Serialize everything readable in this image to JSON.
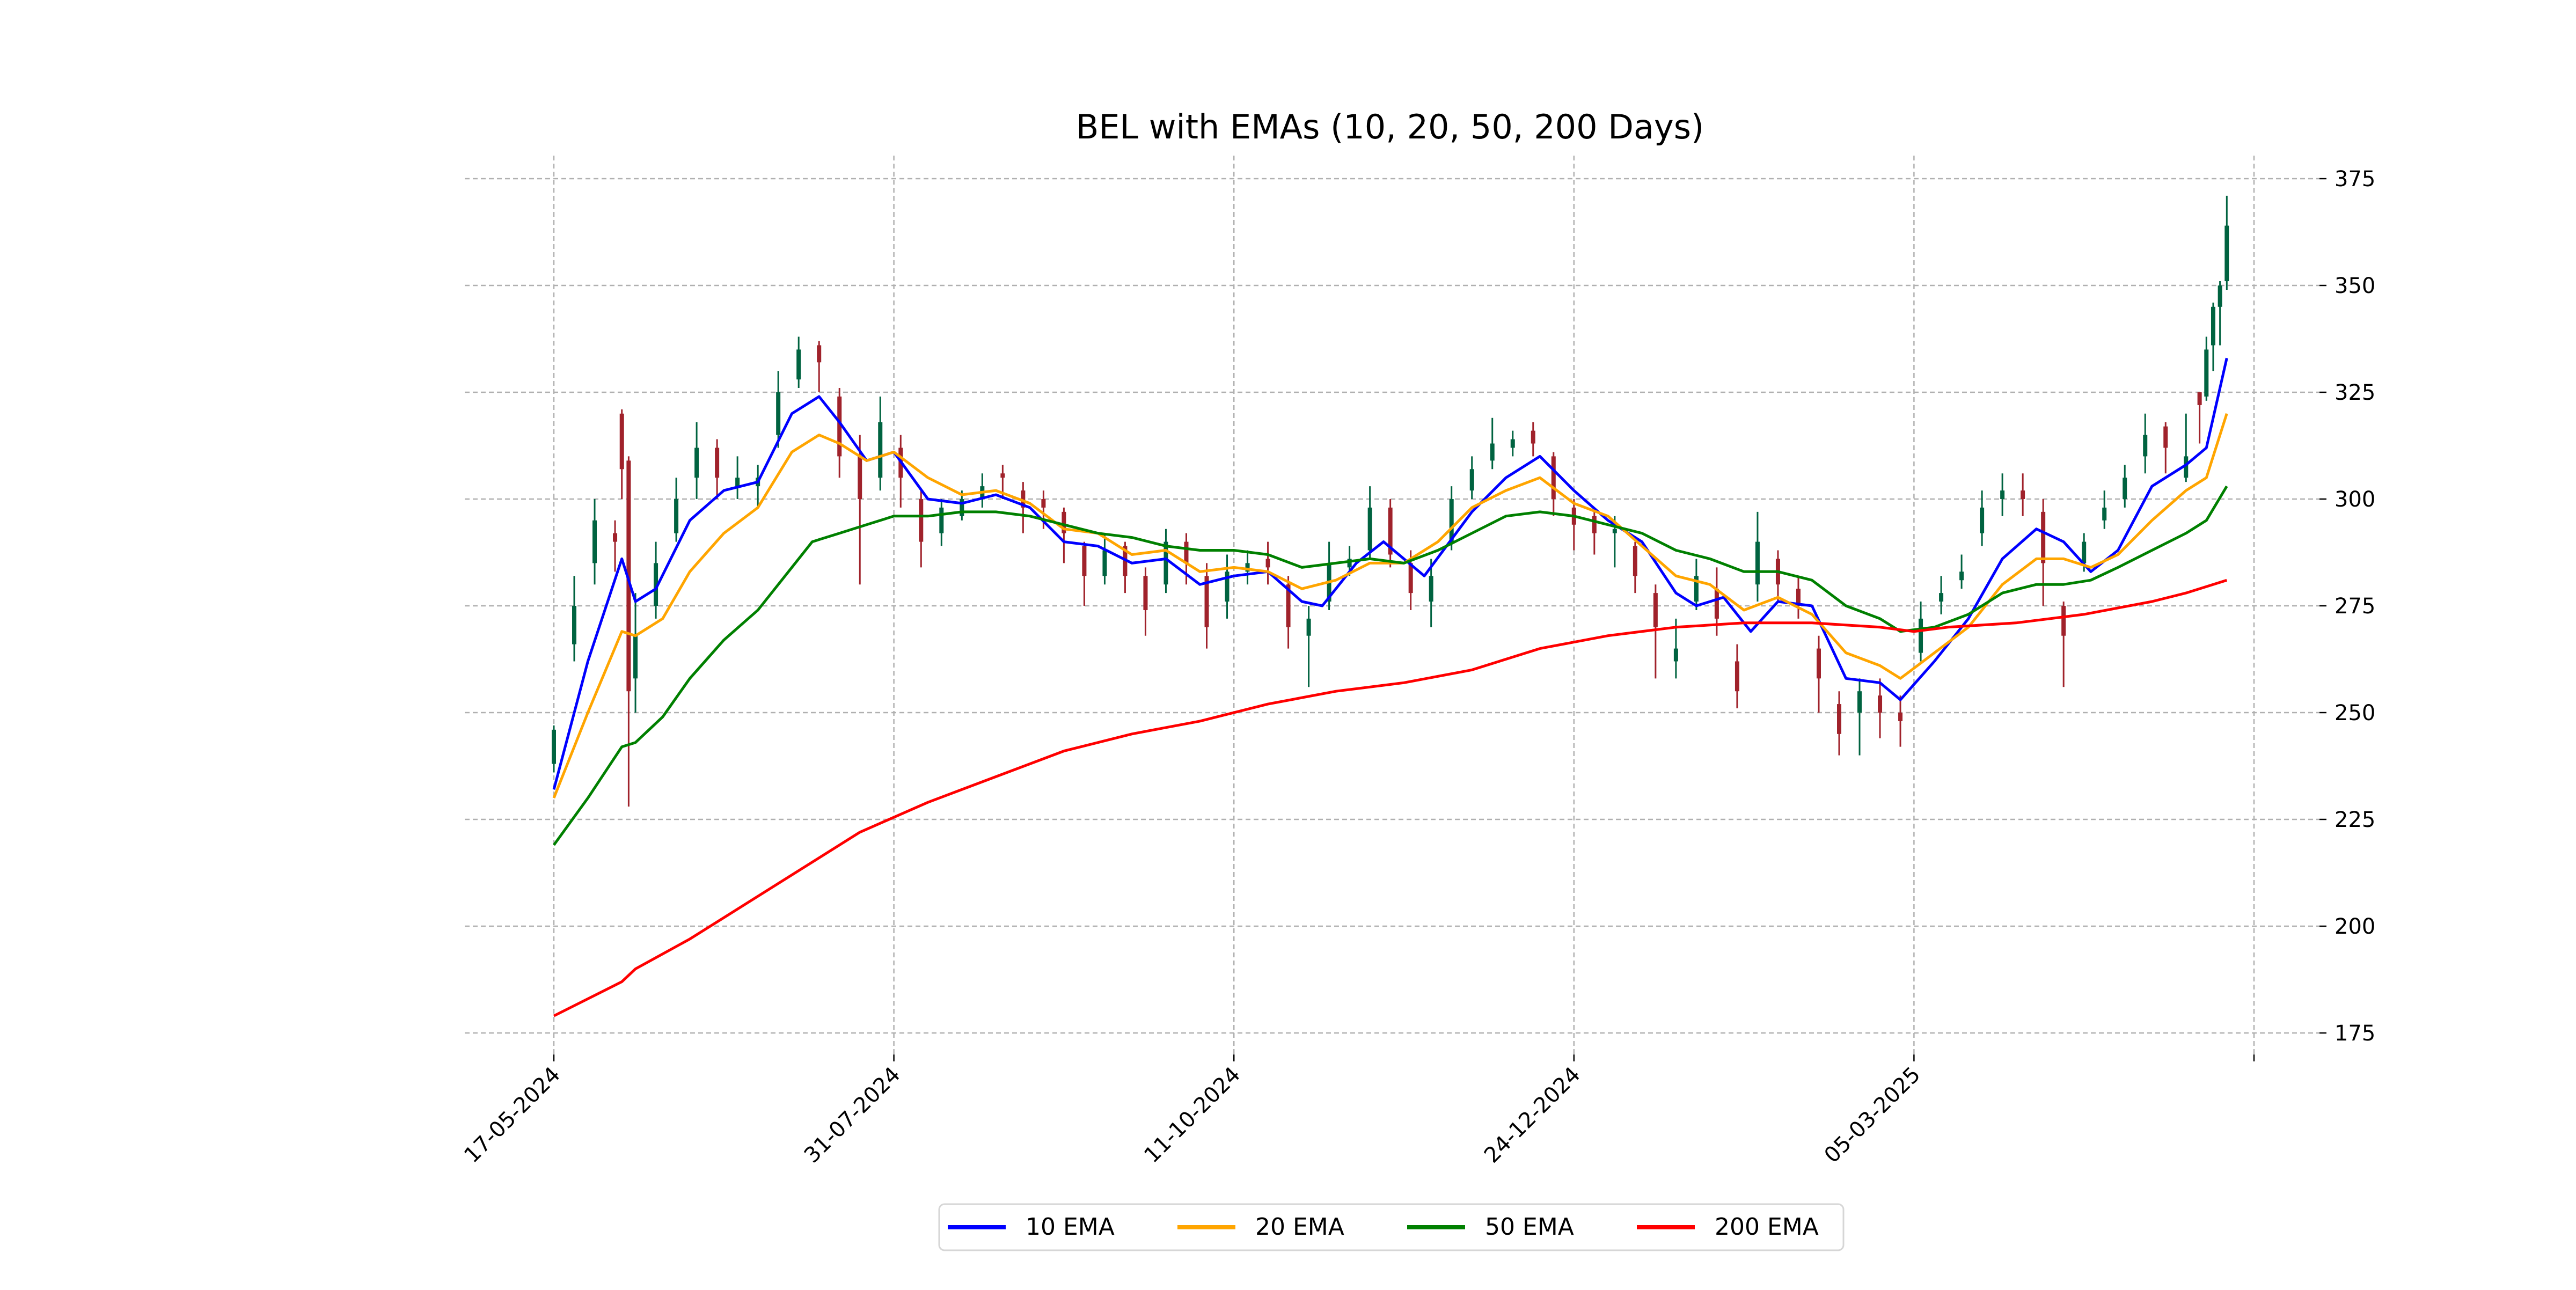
{
  "chart_data": {
    "type": "candlestick-line",
    "title": "BEL with EMAs (10, 20, 50, 200 Days)",
    "xlabel": "",
    "ylabel": "",
    "ylim": [
      170,
      380
    ],
    "xlim": [
      -17,
      256
    ],
    "grid": true,
    "legend_position": "bottom-center",
    "x_ticks": [
      {
        "index": 0,
        "label": "17-05-2024"
      },
      {
        "index": 50,
        "label": "31-07-2024"
      },
      {
        "index": 100,
        "label": "11-10-2024"
      },
      {
        "index": 150,
        "label": "24-12-2024"
      },
      {
        "index": 200,
        "label": "05-03-2025"
      },
      {
        "index": 250,
        "label": ""
      }
    ],
    "y_ticks": [
      175,
      200,
      225,
      250,
      275,
      300,
      325,
      350,
      375
    ],
    "colors": {
      "up": "#006340",
      "down": "#a0222b"
    },
    "candles_note_fields": [
      "index",
      "open",
      "high",
      "low",
      "close"
    ],
    "candles": [
      [
        0,
        238,
        247,
        236,
        246
      ],
      [
        3,
        266,
        282,
        262,
        275
      ],
      [
        6,
        285,
        300,
        280,
        295
      ],
      [
        9,
        292,
        295,
        283,
        290
      ],
      [
        10,
        320,
        321,
        300,
        307
      ],
      [
        11,
        309,
        310,
        228,
        255
      ],
      [
        12,
        258,
        278,
        250,
        268
      ],
      [
        15,
        275,
        290,
        272,
        285
      ],
      [
        18,
        292,
        305,
        290,
        300
      ],
      [
        21,
        305,
        318,
        300,
        312
      ],
      [
        24,
        312,
        314,
        300,
        305
      ],
      [
        27,
        303,
        310,
        300,
        305
      ],
      [
        30,
        303,
        308,
        298,
        305
      ],
      [
        33,
        315,
        330,
        312,
        325
      ],
      [
        36,
        328,
        338,
        326,
        335
      ],
      [
        39,
        336,
        337,
        325,
        332
      ],
      [
        42,
        324,
        326,
        305,
        310
      ],
      [
        45,
        310,
        315,
        280,
        300
      ],
      [
        48,
        305,
        324,
        302,
        318
      ],
      [
        51,
        312,
        315,
        298,
        305
      ],
      [
        54,
        300,
        302,
        284,
        290
      ],
      [
        57,
        292,
        300,
        289,
        298
      ],
      [
        60,
        296,
        302,
        295,
        300
      ],
      [
        63,
        300,
        306,
        298,
        303
      ],
      [
        66,
        306,
        308,
        300,
        305
      ],
      [
        69,
        302,
        304,
        292,
        298
      ],
      [
        72,
        300,
        302,
        293,
        298
      ],
      [
        75,
        297,
        298,
        285,
        292
      ],
      [
        78,
        289,
        290,
        275,
        282
      ],
      [
        81,
        282,
        292,
        280,
        288
      ],
      [
        84,
        289,
        290,
        278,
        282
      ],
      [
        87,
        282,
        284,
        268,
        274
      ],
      [
        90,
        280,
        293,
        278,
        290
      ],
      [
        93,
        290,
        292,
        280,
        285
      ],
      [
        96,
        282,
        285,
        265,
        270
      ],
      [
        99,
        276,
        287,
        272,
        283
      ],
      [
        102,
        283,
        288,
        280,
        285
      ],
      [
        105,
        286,
        290,
        280,
        284
      ],
      [
        108,
        280,
        282,
        265,
        270
      ],
      [
        111,
        268,
        275,
        256,
        272
      ],
      [
        114,
        276,
        290,
        274,
        285
      ],
      [
        117,
        284,
        289,
        282,
        286
      ],
      [
        120,
        288,
        303,
        286,
        298
      ],
      [
        123,
        298,
        300,
        284,
        287
      ],
      [
        126,
        285,
        288,
        274,
        278
      ],
      [
        129,
        276,
        286,
        270,
        282
      ],
      [
        132,
        290,
        303,
        288,
        300
      ],
      [
        135,
        302,
        310,
        300,
        307
      ],
      [
        138,
        309,
        319,
        307,
        313
      ],
      [
        141,
        312,
        316,
        310,
        314
      ],
      [
        144,
        316,
        318,
        310,
        313
      ],
      [
        147,
        310,
        311,
        296,
        300
      ],
      [
        150,
        298,
        300,
        288,
        294
      ],
      [
        153,
        296,
        298,
        287,
        292
      ],
      [
        156,
        292,
        296,
        284,
        293
      ],
      [
        159,
        289,
        290,
        278,
        282
      ],
      [
        162,
        278,
        280,
        258,
        270
      ],
      [
        165,
        262,
        272,
        258,
        265
      ],
      [
        168,
        276,
        286,
        274,
        282
      ],
      [
        171,
        279,
        284,
        268,
        272
      ],
      [
        174,
        262,
        266,
        251,
        255
      ],
      [
        177,
        280,
        297,
        276,
        290
      ],
      [
        180,
        286,
        288,
        276,
        280
      ],
      [
        183,
        279,
        282,
        272,
        275
      ],
      [
        186,
        265,
        268,
        250,
        258
      ],
      [
        189,
        252,
        255,
        240,
        245
      ],
      [
        192,
        250,
        258,
        240,
        255
      ],
      [
        195,
        254,
        258,
        244,
        250
      ],
      [
        198,
        250,
        254,
        242,
        248
      ],
      [
        201,
        264,
        276,
        262,
        272
      ],
      [
        204,
        276,
        282,
        273,
        278
      ],
      [
        207,
        281,
        287,
        279,
        283
      ],
      [
        210,
        292,
        302,
        289,
        298
      ],
      [
        213,
        300,
        306,
        296,
        302
      ],
      [
        216,
        302,
        306,
        296,
        300
      ],
      [
        219,
        297,
        300,
        275,
        285
      ],
      [
        222,
        275,
        276,
        256,
        268
      ],
      [
        225,
        285,
        292,
        283,
        290
      ],
      [
        228,
        295,
        302,
        293,
        298
      ],
      [
        231,
        300,
        308,
        298,
        305
      ],
      [
        234,
        310,
        320,
        306,
        315
      ],
      [
        237,
        317,
        318,
        306,
        312
      ],
      [
        240,
        305,
        320,
        304,
        310
      ],
      [
        242,
        325,
        325,
        313,
        322
      ],
      [
        243,
        324,
        338,
        323,
        335
      ],
      [
        244,
        336,
        346,
        330,
        345
      ],
      [
        245,
        345,
        351,
        336,
        350
      ],
      [
        246,
        351,
        371,
        349,
        364
      ]
    ],
    "series": [
      {
        "name": "10 EMA",
        "color": "#0000ff",
        "x": [
          0,
          5,
          10,
          12,
          15,
          20,
          25,
          30,
          35,
          39,
          42,
          46,
          50,
          55,
          60,
          65,
          70,
          75,
          80,
          85,
          90,
          95,
          100,
          105,
          110,
          113,
          118,
          122,
          128,
          135,
          140,
          145,
          150,
          155,
          160,
          165,
          168,
          172,
          176,
          180,
          185,
          190,
          195,
          198,
          203,
          208,
          213,
          218,
          222,
          226,
          230,
          235,
          240,
          243,
          246
        ],
        "y": [
          232,
          262,
          286,
          276,
          279,
          295,
          302,
          304,
          320,
          324,
          318,
          309,
          311,
          300,
          299,
          301,
          298,
          290,
          289,
          285,
          286,
          280,
          282,
          283,
          276,
          275,
          285,
          290,
          282,
          297,
          305,
          310,
          302,
          295,
          290,
          278,
          275,
          277,
          269,
          276,
          275,
          258,
          257,
          253,
          262,
          272,
          286,
          293,
          290,
          283,
          288,
          303,
          308,
          312,
          333
        ]
      },
      {
        "name": "20 EMA",
        "color": "#ffa500",
        "x": [
          0,
          5,
          10,
          12,
          16,
          20,
          25,
          30,
          35,
          39,
          42,
          46,
          50,
          55,
          60,
          65,
          70,
          75,
          80,
          85,
          90,
          95,
          100,
          105,
          110,
          115,
          120,
          125,
          130,
          135,
          140,
          145,
          150,
          155,
          160,
          165,
          170,
          175,
          180,
          185,
          190,
          195,
          198,
          203,
          208,
          213,
          218,
          222,
          226,
          230,
          235,
          240,
          243,
          246
        ],
        "y": [
          230,
          250,
          269,
          268,
          272,
          283,
          292,
          298,
          311,
          315,
          313,
          309,
          311,
          305,
          301,
          302,
          299,
          293,
          292,
          287,
          288,
          283,
          284,
          283,
          279,
          281,
          285,
          285,
          290,
          298,
          302,
          305,
          299,
          296,
          289,
          282,
          280,
          274,
          277,
          273,
          264,
          261,
          258,
          264,
          270,
          280,
          286,
          286,
          284,
          287,
          295,
          302,
          305,
          320
        ]
      },
      {
        "name": "50 EMA",
        "color": "#008000",
        "x": [
          0,
          5,
          10,
          12,
          16,
          20,
          25,
          30,
          35,
          38,
          42,
          46,
          50,
          55,
          60,
          65,
          70,
          75,
          80,
          85,
          90,
          95,
          100,
          105,
          110,
          115,
          120,
          125,
          130,
          135,
          140,
          145,
          150,
          155,
          160,
          165,
          170,
          175,
          180,
          185,
          190,
          195,
          198,
          203,
          208,
          213,
          218,
          222,
          226,
          230,
          235,
          240,
          243,
          246
        ],
        "y": [
          219,
          230,
          242,
          243,
          249,
          258,
          267,
          274,
          284,
          290,
          292,
          294,
          296,
          296,
          297,
          297,
          296,
          294,
          292,
          291,
          289,
          288,
          288,
          287,
          284,
          285,
          286,
          285,
          288,
          292,
          296,
          297,
          296,
          294,
          292,
          288,
          286,
          283,
          283,
          281,
          275,
          272,
          269,
          270,
          273,
          278,
          280,
          280,
          281,
          284,
          288,
          292,
          295,
          303
        ]
      },
      {
        "name": "200 EMA",
        "color": "#ff0000",
        "x": [
          0,
          10,
          12,
          20,
          25,
          35,
          45,
          55,
          65,
          75,
          85,
          95,
          105,
          115,
          125,
          135,
          145,
          155,
          165,
          175,
          185,
          195,
          200,
          205,
          215,
          225,
          235,
          240,
          246
        ],
        "y": [
          179,
          187,
          190,
          197,
          202,
          212,
          222,
          229,
          235,
          241,
          245,
          248,
          252,
          255,
          257,
          260,
          265,
          268,
          270,
          271,
          271,
          270,
          269,
          270,
          271,
          273,
          276,
          278,
          281
        ]
      }
    ]
  }
}
